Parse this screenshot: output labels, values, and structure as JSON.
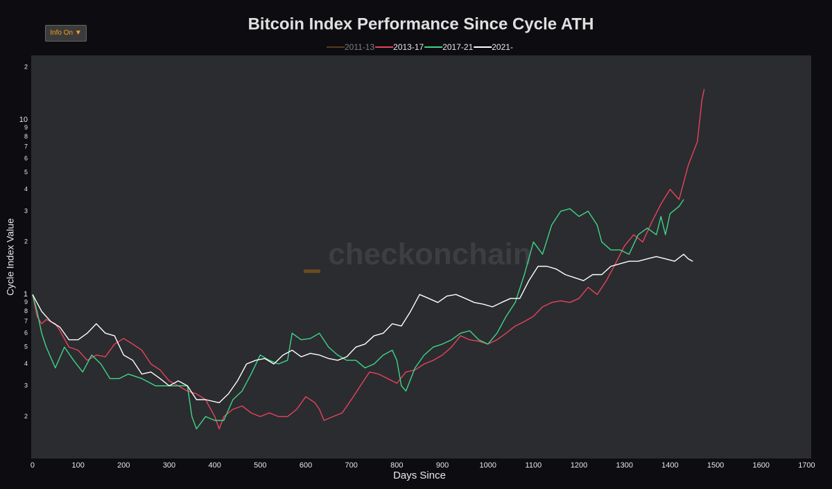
{
  "chart_data": {
    "type": "line",
    "title": "Bitcoin Index Performance Since Cycle ATH",
    "xlabel": "Days Since",
    "ylabel": "Cycle Index Value",
    "watermark": "checkonchain",
    "info_button": "Info On ▼",
    "log_y": true,
    "grid": false,
    "legend": "top",
    "xlim": [
      -3,
      1710
    ],
    "ylim": [
      0.115,
      23.4
    ],
    "xticks": [
      0,
      100,
      200,
      300,
      400,
      500,
      600,
      700,
      800,
      900,
      1000,
      1100,
      1200,
      1300,
      1400,
      1500,
      1600,
      1700
    ],
    "yticks": [
      {
        "value": 0.2,
        "label": "2"
      },
      {
        "value": 0.3,
        "label": "3"
      },
      {
        "value": 0.4,
        "label": "4"
      },
      {
        "value": 0.5,
        "label": "5"
      },
      {
        "value": 0.6,
        "label": "6"
      },
      {
        "value": 0.7,
        "label": "7"
      },
      {
        "value": 0.8,
        "label": "8"
      },
      {
        "value": 0.9,
        "label": "9"
      },
      1,
      {
        "value": 2,
        "label": "2"
      },
      {
        "value": 3,
        "label": "3"
      },
      {
        "value": 4,
        "label": "4"
      },
      {
        "value": 5,
        "label": "5"
      },
      {
        "value": 6,
        "label": "6"
      },
      {
        "value": 7,
        "label": "7"
      },
      {
        "value": 8,
        "label": "8"
      },
      {
        "value": 9,
        "label": "9"
      },
      10,
      {
        "value": 20,
        "label": "2"
      }
    ],
    "series": [
      {
        "name": "2011-13",
        "color": "#9a6a2c",
        "visible": "legendonly"
      },
      {
        "name": "2013-17",
        "color": "#e8435f",
        "x": [
          0,
          10,
          20,
          30,
          40,
          50,
          60,
          80,
          100,
          120,
          140,
          160,
          180,
          200,
          220,
          240,
          260,
          280,
          300,
          320,
          340,
          360,
          380,
          400,
          410,
          420,
          440,
          460,
          480,
          500,
          520,
          540,
          560,
          580,
          600,
          620,
          630,
          640,
          660,
          680,
          700,
          720,
          740,
          760,
          780,
          800,
          820,
          840,
          860,
          880,
          900,
          920,
          940,
          960,
          980,
          1000,
          1020,
          1040,
          1060,
          1080,
          1100,
          1120,
          1140,
          1160,
          1180,
          1200,
          1220,
          1240,
          1260,
          1280,
          1300,
          1320,
          1340,
          1360,
          1380,
          1400,
          1420,
          1440,
          1460,
          1470,
          1475
        ],
        "values": [
          1.0,
          0.75,
          0.68,
          0.72,
          0.7,
          0.68,
          0.62,
          0.5,
          0.48,
          0.42,
          0.45,
          0.44,
          0.52,
          0.56,
          0.52,
          0.48,
          0.4,
          0.37,
          0.32,
          0.3,
          0.28,
          0.27,
          0.25,
          0.2,
          0.17,
          0.2,
          0.22,
          0.23,
          0.21,
          0.2,
          0.21,
          0.2,
          0.2,
          0.22,
          0.26,
          0.24,
          0.22,
          0.19,
          0.2,
          0.21,
          0.25,
          0.3,
          0.36,
          0.35,
          0.33,
          0.31,
          0.36,
          0.37,
          0.4,
          0.42,
          0.45,
          0.5,
          0.58,
          0.55,
          0.54,
          0.52,
          0.55,
          0.6,
          0.66,
          0.7,
          0.75,
          0.85,
          0.9,
          0.92,
          0.9,
          0.95,
          1.1,
          1.0,
          1.2,
          1.5,
          1.9,
          2.2,
          2.0,
          2.6,
          3.3,
          4.0,
          3.5,
          5.5,
          7.5,
          13,
          15
        ]
      },
      {
        "name": "2017-21",
        "color": "#3fd68a",
        "x": [
          0,
          10,
          20,
          30,
          50,
          70,
          90,
          110,
          130,
          150,
          170,
          190,
          210,
          240,
          270,
          300,
          340,
          350,
          360,
          380,
          400,
          420,
          440,
          460,
          480,
          500,
          520,
          540,
          560,
          570,
          590,
          610,
          630,
          650,
          670,
          690,
          710,
          730,
          750,
          770,
          790,
          800,
          810,
          820,
          840,
          860,
          880,
          900,
          920,
          940,
          960,
          980,
          1000,
          1020,
          1040,
          1060,
          1080,
          1100,
          1120,
          1140,
          1160,
          1180,
          1200,
          1220,
          1240,
          1250,
          1270,
          1290,
          1310,
          1330,
          1350,
          1370,
          1380,
          1390,
          1400,
          1420,
          1430
        ],
        "values": [
          1.0,
          0.8,
          0.6,
          0.5,
          0.38,
          0.5,
          0.42,
          0.36,
          0.45,
          0.4,
          0.33,
          0.33,
          0.35,
          0.33,
          0.3,
          0.3,
          0.3,
          0.2,
          0.17,
          0.2,
          0.19,
          0.19,
          0.25,
          0.28,
          0.35,
          0.45,
          0.42,
          0.4,
          0.42,
          0.6,
          0.55,
          0.56,
          0.6,
          0.5,
          0.45,
          0.42,
          0.42,
          0.38,
          0.4,
          0.45,
          0.48,
          0.42,
          0.3,
          0.28,
          0.38,
          0.45,
          0.5,
          0.52,
          0.55,
          0.6,
          0.62,
          0.55,
          0.52,
          0.6,
          0.75,
          0.9,
          1.3,
          2.0,
          1.7,
          2.5,
          3.0,
          3.1,
          2.8,
          3.0,
          2.5,
          2.0,
          1.8,
          1.8,
          1.7,
          2.2,
          2.4,
          2.2,
          2.8,
          2.2,
          2.9,
          3.2,
          3.5
        ]
      },
      {
        "name": "2021-",
        "color": "#ffffff",
        "x": [
          0,
          20,
          40,
          60,
          80,
          100,
          120,
          140,
          160,
          180,
          200,
          220,
          240,
          260,
          280,
          300,
          320,
          340,
          360,
          380,
          410,
          430,
          450,
          470,
          490,
          510,
          530,
          550,
          570,
          590,
          610,
          630,
          650,
          670,
          690,
          710,
          730,
          750,
          770,
          790,
          810,
          830,
          850,
          870,
          890,
          910,
          930,
          950,
          970,
          990,
          1010,
          1030,
          1050,
          1070,
          1090,
          1110,
          1130,
          1150,
          1170,
          1190,
          1210,
          1230,
          1250,
          1270,
          1290,
          1310,
          1330,
          1350,
          1370,
          1390,
          1410,
          1430,
          1440,
          1450
        ],
        "values": [
          1.0,
          0.8,
          0.7,
          0.65,
          0.55,
          0.55,
          0.6,
          0.68,
          0.6,
          0.58,
          0.45,
          0.42,
          0.35,
          0.36,
          0.33,
          0.3,
          0.32,
          0.3,
          0.25,
          0.25,
          0.24,
          0.27,
          0.32,
          0.4,
          0.42,
          0.43,
          0.4,
          0.45,
          0.48,
          0.44,
          0.46,
          0.45,
          0.43,
          0.42,
          0.44,
          0.5,
          0.52,
          0.58,
          0.6,
          0.68,
          0.66,
          0.8,
          1.0,
          0.95,
          0.9,
          0.98,
          1.0,
          0.95,
          0.9,
          0.88,
          0.85,
          0.9,
          0.95,
          0.95,
          1.2,
          1.45,
          1.45,
          1.4,
          1.3,
          1.25,
          1.2,
          1.3,
          1.3,
          1.45,
          1.5,
          1.55,
          1.55,
          1.6,
          1.65,
          1.6,
          1.55,
          1.7,
          1.6,
          1.55
        ]
      }
    ]
  }
}
